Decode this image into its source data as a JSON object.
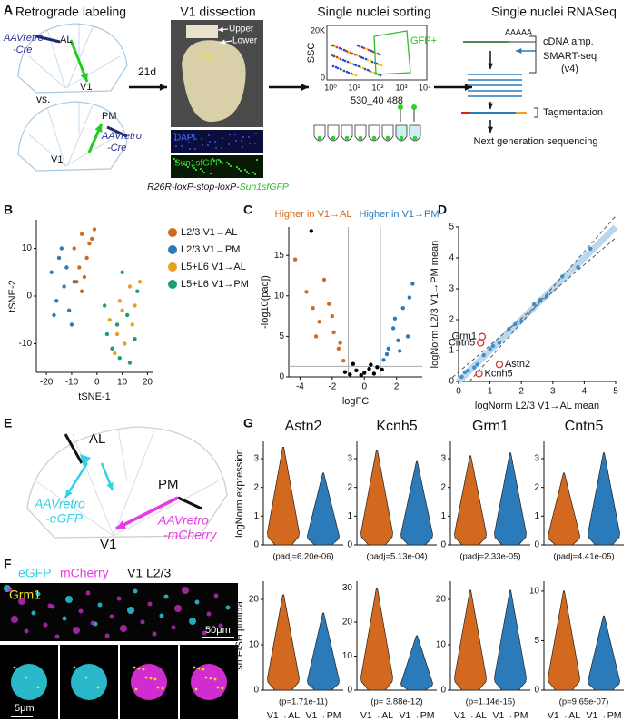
{
  "panel_labels": [
    "A",
    "B",
    "C",
    "D",
    "E",
    "F",
    "G"
  ],
  "panel_a": {
    "titles": [
      "Retrograde labeling",
      "V1 dissection",
      "Single nuclei sorting",
      "Single nuclei RNASeq"
    ],
    "virus_1": [
      "AAVretro",
      "-Cre"
    ],
    "target_1": "AL",
    "area_1": "V1",
    "versus": "vs.",
    "target_2": "PM",
    "virus_2": [
      "AAVretro",
      "-Cre"
    ],
    "area_2": "V1",
    "delay": "21d",
    "dissection_labels": [
      "Upper",
      "Lower",
      "V1"
    ],
    "stains": [
      "DAPI",
      "Sun1sfGFP"
    ],
    "facs": {
      "ylabel": "SSC",
      "yticks": [
        "20K",
        "0"
      ],
      "xticks": [
        "10⁰",
        "10¹",
        "10²",
        "10³",
        "10⁴"
      ],
      "xlabel": "530_40 488",
      "gate": "GFP+"
    },
    "seq": {
      "polyA": "AAAAA",
      "steps": [
        "cDNA amp.",
        "SMART-seq",
        "(v4)",
        "Tagmentation",
        "Next generation sequencing"
      ]
    },
    "caption": [
      "R26R-loxP-stop-loxP-",
      "Sun1sfGFP"
    ]
  },
  "panel_e": {
    "target_1": "AL",
    "virus_1": [
      "AAVretro",
      "-eGFP"
    ],
    "target_2": "PM",
    "virus_2": [
      "AAVretro",
      "-mCherry"
    ],
    "area": "V1"
  },
  "panel_f": {
    "channels": [
      "eGFP",
      "mCherry",
      "V1 L2/3"
    ],
    "gene": "Grm1",
    "scale_bars": [
      "50μm",
      "5μm"
    ]
  },
  "chart_data": [
    {
      "type": "scatter",
      "xlabel": "tSNE-1",
      "ylabel": "tSNE-2",
      "xlim": [
        -24,
        22
      ],
      "ylim": [
        -16,
        16
      ],
      "xticks": [
        -20,
        -10,
        0,
        10,
        20
      ],
      "yticks": [
        -10,
        0,
        10
      ],
      "legend": "right",
      "series": [
        {
          "name": "L2/3 V1→AL",
          "color": "#d2691e",
          "x": [
            -9,
            -6,
            -3,
            -7,
            -4,
            -1,
            -8,
            -5,
            -2,
            -6
          ],
          "y": [
            10,
            13,
            11,
            6,
            8,
            14,
            3,
            4,
            12,
            1
          ]
        },
        {
          "name": "L2/3 V1→PM",
          "color": "#2b7bba",
          "x": [
            -18,
            -15,
            -13,
            -11,
            -16,
            -12,
            -10,
            -14,
            -17,
            -9
          ],
          "y": [
            5,
            8,
            2,
            -3,
            -1,
            6,
            -6,
            10,
            -4,
            3
          ]
        },
        {
          "name": "L5+L6 V1→AL",
          "color": "#e6a11d",
          "x": [
            5,
            8,
            10,
            13,
            15,
            17,
            11,
            7,
            14,
            9
          ],
          "y": [
            -5,
            -8,
            -3,
            2,
            -2,
            3,
            -10,
            -12,
            -6,
            -1
          ]
        },
        {
          "name": "L5+L6 V1→PM",
          "color": "#1b9e77",
          "x": [
            4,
            6,
            9,
            12,
            15,
            16,
            10,
            13,
            3,
            8
          ],
          "y": [
            -8,
            -11,
            -13,
            -4,
            -9,
            1,
            5,
            -14,
            -2,
            -6
          ]
        }
      ]
    },
    {
      "type": "scatter",
      "xlabel": "logFC",
      "ylabel": "-log10(padj)",
      "xlim": [
        -4.7,
        3.6
      ],
      "ylim": [
        0,
        18.5
      ],
      "xticks": [
        -4,
        -2,
        0,
        2
      ],
      "yticks": [
        0,
        5,
        10,
        15
      ],
      "legend": "top",
      "xrefs": [
        -1,
        1
      ],
      "yrefs": [
        1.3
      ],
      "series": [
        {
          "name": "Higher in V1→AL",
          "color": "#d2691e",
          "x": [
            -4.3,
            -3.6,
            -3.2,
            -2.8,
            -2.5,
            -2.2,
            -1.9,
            -1.6,
            -1.3,
            -2.0,
            -1.5,
            -3.0
          ],
          "y": [
            14.5,
            10.5,
            8.5,
            6.8,
            12,
            9,
            5.5,
            3.5,
            2.0,
            7.5,
            4.2,
            5
          ]
        },
        {
          "name": "Higher in V1→PM",
          "color": "#2b7bba",
          "x": [
            1.2,
            1.5,
            1.8,
            2.1,
            2.4,
            2.7,
            3.0,
            1.4,
            1.9,
            2.2,
            2.8
          ],
          "y": [
            2.1,
            3.5,
            6,
            4.5,
            8.5,
            5,
            11.5,
            2.8,
            7.2,
            3.2,
            9.8
          ]
        },
        {
          "color": "#000000",
          "x": [
            -0.9,
            -0.5,
            -0.2,
            0,
            0.3,
            0.6,
            0.8,
            -1.2,
            1.1,
            -0.7,
            0.4,
            -3.3
          ],
          "y": [
            0.3,
            0.8,
            0.2,
            0.5,
            1.0,
            0.4,
            1.2,
            0.6,
            0.9,
            1.6,
            1.5,
            18
          ]
        }
      ]
    },
    {
      "type": "scatter",
      "xlabel": "logNorm L2/3 V1→AL mean",
      "ylabel": "logNorm L2/3 V1→PM mean",
      "xlim": [
        0,
        5
      ],
      "ylim": [
        0,
        5
      ],
      "xticks": [
        0,
        1,
        2,
        3,
        4,
        5
      ],
      "yticks": [
        0,
        1,
        2,
        3,
        4,
        5
      ],
      "diagonal": true,
      "series": [
        {
          "color": "#3a8fd1",
          "x": [
            0.1,
            0.3,
            0.5,
            0.8,
            1.0,
            1.3,
            1.6,
            2.0,
            2.4,
            2.8,
            3.3,
            3.8,
            0.2,
            0.6,
            1.1,
            1.8,
            2.6,
            4.2
          ],
          "y": [
            0.15,
            0.35,
            0.45,
            0.85,
            1.05,
            1.25,
            1.7,
            1.95,
            2.5,
            2.75,
            3.4,
            3.7,
            0.3,
            0.55,
            1.15,
            1.85,
            2.65,
            4.3
          ]
        },
        {
          "color": "#e03030",
          "hollow": true,
          "x": [
            0.75,
            0.7,
            1.3,
            0.65
          ],
          "y": [
            1.45,
            1.25,
            0.55,
            0.25
          ],
          "point_labels": [
            "Grm1",
            "Cntn5",
            "Astn2",
            "Kcnh5"
          ]
        }
      ]
    },
    {
      "type": "violin",
      "title": "Astn2",
      "ylabel": "logNorm expression",
      "ylim": [
        0,
        3.6
      ],
      "yticks": [
        0,
        1,
        2,
        3
      ],
      "values": [
        3.4,
        2.5
      ],
      "colors": [
        "#d2691e",
        "#2b7bba"
      ],
      "annotation": "(padj=6.20e-06)"
    },
    {
      "type": "violin",
      "title": "Kcnh5",
      "ylim": [
        0,
        3.6
      ],
      "yticks": [
        0,
        1,
        2,
        3
      ],
      "values": [
        3.3,
        2.9
      ],
      "colors": [
        "#d2691e",
        "#2b7bba"
      ],
      "annotation": "(padj=5.13e-04)"
    },
    {
      "type": "violin",
      "title": "Grm1",
      "ylim": [
        0,
        3.6
      ],
      "yticks": [
        0,
        1,
        2,
        3
      ],
      "values": [
        3.1,
        3.2
      ],
      "colors": [
        "#d2691e",
        "#2b7bba"
      ],
      "annotation": "(padj=2.33e-05)"
    },
    {
      "type": "violin",
      "title": "Cntn5",
      "ylim": [
        0,
        3.6
      ],
      "yticks": [
        0,
        1,
        2,
        3
      ],
      "values": [
        2.5,
        3.2
      ],
      "colors": [
        "#d2691e",
        "#2b7bba"
      ],
      "annotation": "(padj=4.41e-05)"
    },
    {
      "type": "violin",
      "ylabel": "smFISH puncta",
      "ylim": [
        0,
        24
      ],
      "yticks": [
        0,
        10,
        20
      ],
      "values": [
        21,
        17
      ],
      "colors": [
        "#d2691e",
        "#2b7bba"
      ],
      "annotation": "(p=1.71e-11)",
      "categories": [
        "V1→AL",
        "V1→PM"
      ]
    },
    {
      "type": "violin",
      "ylim": [
        0,
        32
      ],
      "yticks": [
        0,
        10,
        20,
        30
      ],
      "values": [
        30,
        16
      ],
      "colors": [
        "#d2691e",
        "#2b7bba"
      ],
      "annotation": "(p= 3.88e-12)",
      "categories": [
        "V1→AL",
        "V1→PM"
      ]
    },
    {
      "type": "violin",
      "ylim": [
        0,
        24
      ],
      "yticks": [
        0,
        10,
        20
      ],
      "values": [
        22,
        22
      ],
      "colors": [
        "#d2691e",
        "#2b7bba"
      ],
      "annotation": "(p=1.14e-15)",
      "categories": [
        "V1→AL",
        "V1→PM"
      ]
    },
    {
      "type": "violin",
      "ylim": [
        0,
        11
      ],
      "yticks": [
        0,
        5,
        10
      ],
      "values": [
        10,
        7.5
      ],
      "colors": [
        "#d2691e",
        "#2b7bba"
      ],
      "annotation": "(p=9.65e-07)",
      "categories": [
        "V1→AL",
        "V1→PM"
      ]
    }
  ]
}
